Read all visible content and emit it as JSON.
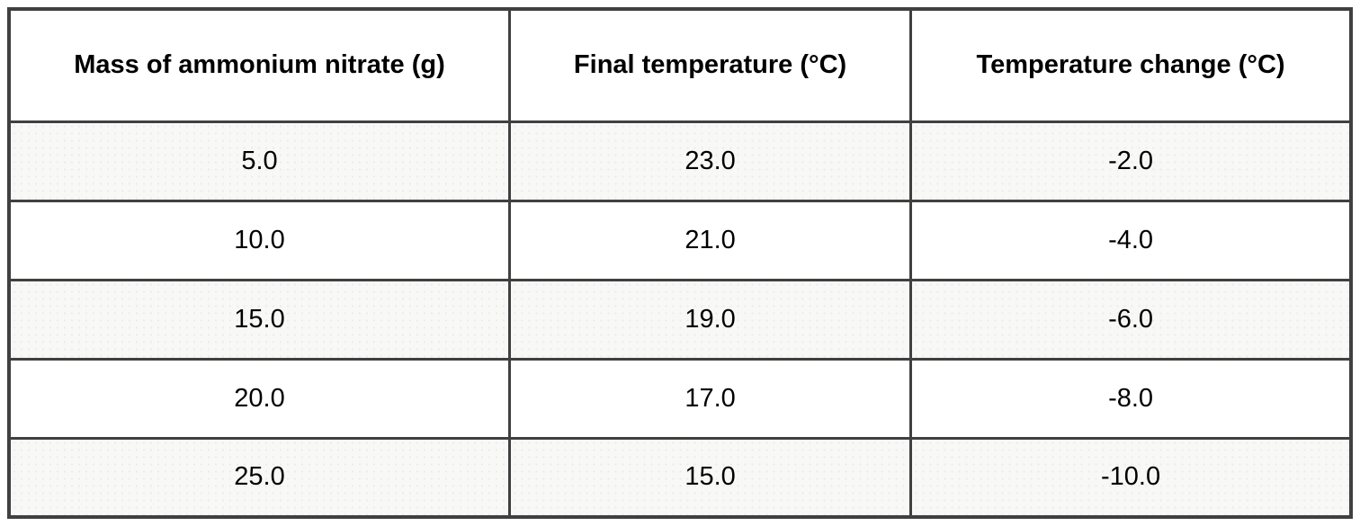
{
  "table": {
    "columns": [
      {
        "label": "Mass of ammonium nitrate (g)"
      },
      {
        "label": "Final temperature (°C)"
      },
      {
        "label": "Temperature change (°C)"
      }
    ],
    "rows": [
      [
        "5.0",
        "23.0",
        "-2.0"
      ],
      [
        "10.0",
        "21.0",
        "-4.0"
      ],
      [
        "15.0",
        "19.0",
        "-6.0"
      ],
      [
        "20.0",
        "17.0",
        "-8.0"
      ],
      [
        "25.0",
        "15.0",
        "-10.0"
      ]
    ]
  },
  "colors": {
    "border": "#404040",
    "shaded_row_background": "#f8f8f7",
    "header_background": "#ffffff",
    "text": "#000000"
  },
  "chart_data": {
    "type": "table",
    "title": "",
    "columns": [
      "Mass of ammonium nitrate (g)",
      "Final temperature (°C)",
      "Temperature change (°C)"
    ],
    "rows": [
      [
        5.0,
        23.0,
        -2.0
      ],
      [
        10.0,
        21.0,
        -4.0
      ],
      [
        15.0,
        19.0,
        -6.0
      ],
      [
        20.0,
        17.0,
        -8.0
      ],
      [
        25.0,
        15.0,
        -10.0
      ]
    ]
  }
}
